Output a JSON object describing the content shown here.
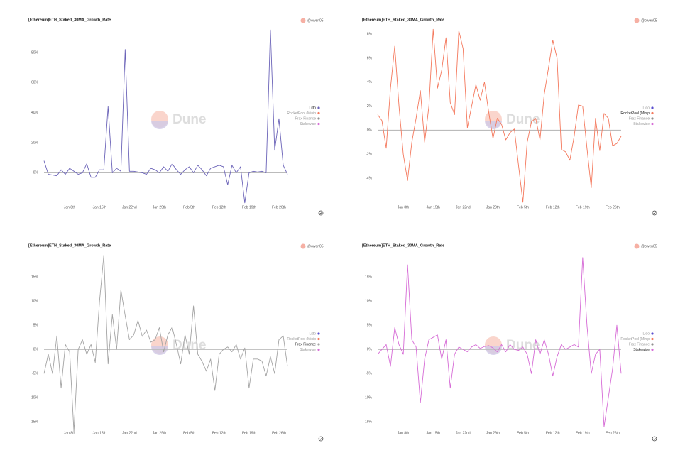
{
  "chart_data": [
    {
      "type": "line",
      "title": "[Ethereum]ETH_Staked_30MA_Growth_Rate",
      "author": "@owen05",
      "watermark": "Dune",
      "x": [
        2,
        3,
        4,
        5,
        6,
        7,
        8,
        9,
        10,
        11,
        12,
        13,
        14,
        15,
        16,
        17,
        18,
        19,
        20,
        21,
        22,
        23,
        24,
        25,
        26,
        27,
        28,
        29,
        30,
        31,
        32,
        33,
        34,
        35,
        36,
        37,
        38,
        39,
        40,
        41,
        42,
        43,
        44,
        45,
        46,
        47,
        48,
        49,
        50,
        51,
        52,
        53,
        54,
        55,
        56,
        57,
        58,
        59
      ],
      "xlim": [
        2,
        59
      ],
      "xticks": [
        {
          "value": 8,
          "label": "Jan 8th"
        },
        {
          "value": 15,
          "label": "Jan 15th"
        },
        {
          "value": 22,
          "label": "Jan 22nd"
        },
        {
          "value": 29,
          "label": "Jan 29th"
        },
        {
          "value": 36,
          "label": "Feb 5th"
        },
        {
          "value": 43,
          "label": "Feb 12th"
        },
        {
          "value": 50,
          "label": "Feb 19th"
        },
        {
          "value": 57,
          "label": "Feb 26th"
        }
      ],
      "ylim": [
        -22,
        97
      ],
      "yticks": [
        {
          "value": 0,
          "label": "0%"
        },
        {
          "value": 20,
          "label": "20%"
        },
        {
          "value": 40,
          "label": "40%"
        },
        {
          "value": 60,
          "label": "60%"
        },
        {
          "value": 80,
          "label": "80%"
        }
      ],
      "series": [
        {
          "name": "Lido",
          "color": "#6b63b8",
          "values": [
            8,
            -1,
            -1.5,
            -2,
            2,
            -1,
            3,
            1,
            -1,
            0,
            6,
            -3,
            -3,
            2,
            2,
            44,
            0,
            3,
            1,
            82,
            1,
            1,
            0.5,
            0,
            -1,
            3,
            2,
            0,
            4,
            1,
            6,
            2,
            -1,
            2,
            4,
            0,
            5,
            2,
            -2,
            3,
            4,
            5,
            4,
            -8,
            5,
            0,
            4,
            -20,
            0,
            1,
            0.5,
            1,
            0,
            95,
            15,
            36,
            5,
            -1
          ]
        },
        {
          "name": "RocketPool (Minip",
          "color": "#f4785c"
        },
        {
          "name": "Frax Finance",
          "color": "#8f8f8f"
        },
        {
          "name": "Stakewise",
          "color": "#d66bd6"
        }
      ]
    },
    {
      "type": "line",
      "title": "[Ethereum]ETH_Staked_30MA_Growth_Rate",
      "author": "@owen05",
      "watermark": "Dune",
      "x": [
        2,
        3,
        4,
        5,
        6,
        7,
        8,
        9,
        10,
        11,
        12,
        13,
        14,
        15,
        16,
        17,
        18,
        19,
        20,
        21,
        22,
        23,
        24,
        25,
        26,
        27,
        28,
        29,
        30,
        31,
        32,
        33,
        34,
        35,
        36,
        37,
        38,
        39,
        40,
        41,
        42,
        43,
        44,
        45,
        46,
        47,
        48,
        49,
        50,
        51,
        52,
        53,
        54,
        55,
        56,
        57,
        58,
        59
      ],
      "xlim": [
        2,
        59
      ],
      "xticks": [
        {
          "value": 8,
          "label": "Jan 8th"
        },
        {
          "value": 15,
          "label": "Jan 15th"
        },
        {
          "value": 22,
          "label": "Jan 22nd"
        },
        {
          "value": 29,
          "label": "Jan 29th"
        },
        {
          "value": 36,
          "label": "Feb 5th"
        },
        {
          "value": 43,
          "label": "Feb 12th"
        },
        {
          "value": 50,
          "label": "Feb 19th"
        },
        {
          "value": 57,
          "label": "Feb 26th"
        }
      ],
      "ylim": [
        -6.3,
        8.6
      ],
      "yticks": [
        {
          "value": -4,
          "label": "-4%"
        },
        {
          "value": -2,
          "label": "-2%"
        },
        {
          "value": 0,
          "label": "0%"
        },
        {
          "value": 2,
          "label": "2%"
        },
        {
          "value": 4,
          "label": "4%"
        },
        {
          "value": 6,
          "label": "6%"
        },
        {
          "value": 8,
          "label": "8%"
        }
      ],
      "series": [
        {
          "name": "Lido",
          "color": "#5a4fcf"
        },
        {
          "name": "RocketPool (Minip",
          "color": "#f4785c",
          "values": [
            1.3,
            0.8,
            -1.5,
            3.5,
            7,
            2,
            -2,
            -4.2,
            -1,
            1,
            3.3,
            -1,
            2,
            8.4,
            3.5,
            5,
            7.7,
            2.3,
            1.3,
            8.3,
            6.8,
            0.2,
            2,
            3.8,
            2.5,
            4,
            1.5,
            -0.7,
            1,
            0.5,
            -0.8,
            -0.2,
            0.1,
            -3,
            -6,
            -1,
            0.7,
            1,
            -0.8,
            3,
            5.2,
            7.5,
            6,
            -1.6,
            -1.8,
            -2.5,
            -0.5,
            2.1,
            2,
            -1.5,
            -4.8,
            1,
            -1.7,
            1.4,
            1,
            -1.3,
            -1.1,
            -0.5
          ]
        },
        {
          "name": "Frax Finance",
          "color": "#8f8f8f"
        },
        {
          "name": "Stakewise",
          "color": "#d66bd6"
        }
      ]
    },
    {
      "type": "line",
      "title": "[Ethereum]ETH_Staked_30MA_Growth_Rate",
      "author": "@owen05",
      "watermark": "Dune",
      "x": [
        2,
        3,
        4,
        5,
        6,
        7,
        8,
        9,
        10,
        11,
        12,
        13,
        14,
        15,
        16,
        17,
        18,
        19,
        20,
        21,
        22,
        23,
        24,
        25,
        26,
        27,
        28,
        29,
        30,
        31,
        32,
        33,
        34,
        35,
        36,
        37,
        38,
        39,
        40,
        41,
        42,
        43,
        44,
        45,
        46,
        47,
        48,
        49,
        50,
        51,
        52,
        53,
        54,
        55,
        56,
        57,
        58,
        59
      ],
      "xlim": [
        2,
        59
      ],
      "xticks": [
        {
          "value": 8,
          "label": "Jan 8th"
        },
        {
          "value": 15,
          "label": "Jan 15th"
        },
        {
          "value": 22,
          "label": "Jan 22nd"
        },
        {
          "value": 29,
          "label": "Jan 29th"
        },
        {
          "value": 36,
          "label": "Feb 5th"
        },
        {
          "value": 43,
          "label": "Feb 12th"
        },
        {
          "value": 50,
          "label": "Feb 19th"
        },
        {
          "value": 57,
          "label": "Feb 26th"
        }
      ],
      "ylim": [
        -17,
        20
      ],
      "yticks": [
        {
          "value": -15,
          "label": "-15%"
        },
        {
          "value": -10,
          "label": "-10%"
        },
        {
          "value": -5,
          "label": "-5%"
        },
        {
          "value": 0,
          "label": "0%"
        },
        {
          "value": 5,
          "label": "5%"
        },
        {
          "value": 10,
          "label": "10%"
        },
        {
          "value": 15,
          "label": "15%"
        }
      ],
      "series": [
        {
          "name": "Lido",
          "color": "#5a4fcf"
        },
        {
          "name": "RocketPool (Minip",
          "color": "#f4785c"
        },
        {
          "name": "Frax Finance",
          "color": "#a3a3a3",
          "values": [
            -5,
            -1,
            -5,
            2.8,
            -8,
            1,
            -0.5,
            -17,
            0,
            2,
            -1,
            1,
            -2.7,
            10,
            19.5,
            -3,
            7.2,
            0,
            12.3,
            7,
            2,
            3,
            6,
            2.7,
            4,
            1.5,
            2,
            4.5,
            -0.5,
            3,
            4.6,
            1,
            -3,
            3,
            -1,
            9,
            -1,
            -2.5,
            -4.5,
            -2,
            -8.5,
            -1,
            0,
            0.5,
            -0.5,
            1,
            -2,
            0.3,
            -8,
            -2,
            -2,
            -2.4,
            -5.5,
            -1.5,
            -5,
            2,
            2.8,
            -3.5
          ]
        },
        {
          "name": "Stakewise",
          "color": "#d66bd6"
        }
      ]
    },
    {
      "type": "line",
      "title": "[Ethereum]ETH_Staked_30MA_Growth_Rate",
      "author": "@owen05",
      "watermark": "Dune",
      "x": [
        2,
        3,
        4,
        5,
        6,
        7,
        8,
        9,
        10,
        11,
        12,
        13,
        14,
        15,
        16,
        17,
        18,
        19,
        20,
        21,
        22,
        23,
        24,
        25,
        26,
        27,
        28,
        29,
        30,
        31,
        32,
        33,
        34,
        35,
        36,
        37,
        38,
        39,
        40,
        41,
        42,
        43,
        44,
        45,
        46,
        47,
        48,
        49,
        50,
        51,
        52,
        53,
        54,
        55,
        56,
        57,
        58,
        59
      ],
      "xlim": [
        2,
        59
      ],
      "xticks": [
        {
          "value": 8,
          "label": "Jan 8th"
        },
        {
          "value": 15,
          "label": "Jan 15th"
        },
        {
          "value": 22,
          "label": "Jan 22nd"
        },
        {
          "value": 29,
          "label": "Jan 29th"
        },
        {
          "value": 36,
          "label": "Feb 5th"
        },
        {
          "value": 43,
          "label": "Feb 12th"
        },
        {
          "value": 50,
          "label": "Feb 19th"
        },
        {
          "value": 57,
          "label": "Feb 26th"
        }
      ],
      "ylim": [
        -17,
        20
      ],
      "yticks": [
        {
          "value": -15,
          "label": "-15%"
        },
        {
          "value": -10,
          "label": "-10%"
        },
        {
          "value": -5,
          "label": "-5%"
        },
        {
          "value": 0,
          "label": "0%"
        },
        {
          "value": 5,
          "label": "5%"
        },
        {
          "value": 10,
          "label": "10%"
        },
        {
          "value": 15,
          "label": "15%"
        }
      ],
      "series": [
        {
          "name": "Lido",
          "color": "#5a4fcf"
        },
        {
          "name": "RocketPool (Minip",
          "color": "#f4785c"
        },
        {
          "name": "Frax Finance",
          "color": "#8f8f8f"
        },
        {
          "name": "Stakewise",
          "color": "#d66bd6",
          "values": [
            -1,
            0,
            1,
            -3.5,
            4.5,
            1,
            -1,
            17.5,
            2,
            0.5,
            -11,
            -2,
            2,
            2.5,
            3,
            -2,
            2,
            -8,
            -1,
            0.5,
            0,
            -0.5,
            0.5,
            1,
            0.2,
            0.6,
            0.8,
            0.3,
            -0.5,
            1,
            -0.5,
            1,
            0,
            -0.2,
            0.5,
            -1,
            -5,
            2,
            -1,
            2,
            -1,
            -5.5,
            -1.5,
            1,
            0,
            0.5,
            1,
            0.5,
            19,
            5,
            -5,
            -1,
            0,
            -16,
            -10,
            -4,
            5,
            -5
          ]
        }
      ]
    }
  ]
}
